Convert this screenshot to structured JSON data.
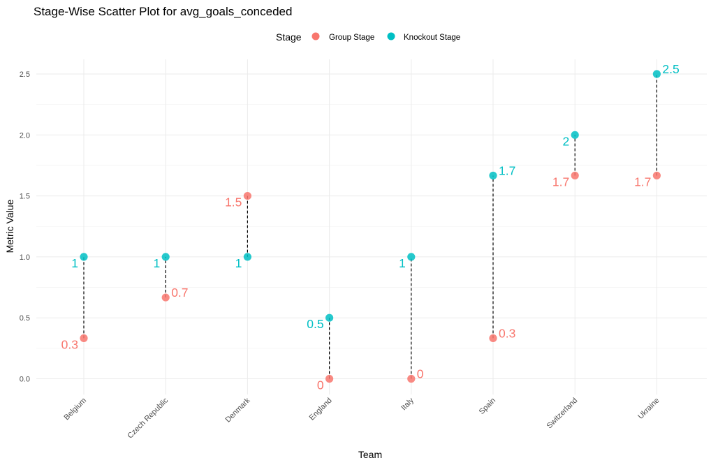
{
  "chart_data": {
    "type": "scatter",
    "title": "Stage-Wise Scatter Plot for avg_goals_conceded",
    "xlabel": "Team",
    "ylabel": "Metric Value",
    "legend": {
      "title": "Stage",
      "position": "top",
      "entries": [
        {
          "name": "Group Stage",
          "color": "#F8766D"
        },
        {
          "name": "Knockout Stage",
          "color": "#00BFC4"
        }
      ]
    },
    "categories": [
      "Belgium",
      "Czech Republic",
      "Denmark",
      "England",
      "Italy",
      "Spain",
      "Switzerland",
      "Ukraine"
    ],
    "series": [
      {
        "name": "Group Stage",
        "color": "#F8766D",
        "values": [
          0.333,
          0.667,
          1.5,
          0,
          0,
          0.333,
          1.667,
          1.667
        ],
        "labels": [
          "0.3",
          "0.7",
          "1.5",
          "0",
          "0",
          "0.3",
          "1.7",
          "1.7"
        ]
      },
      {
        "name": "Knockout Stage",
        "color": "#00BFC4",
        "values": [
          1,
          1,
          1,
          0.5,
          1,
          1.667,
          2,
          2.5
        ],
        "labels": [
          "1",
          "1",
          "1",
          "0.5",
          "1",
          "1.7",
          "2",
          "2.5"
        ]
      }
    ],
    "ylim": [
      -0.125,
      2.625
    ],
    "yticks": [
      0,
      0.5,
      1,
      1.5,
      2,
      2.5
    ],
    "ytick_labels": [
      "0.0",
      "0.5",
      "1.0",
      "1.5",
      "2.0",
      "2.5"
    ],
    "grid": true,
    "connector_line": "dashed"
  }
}
